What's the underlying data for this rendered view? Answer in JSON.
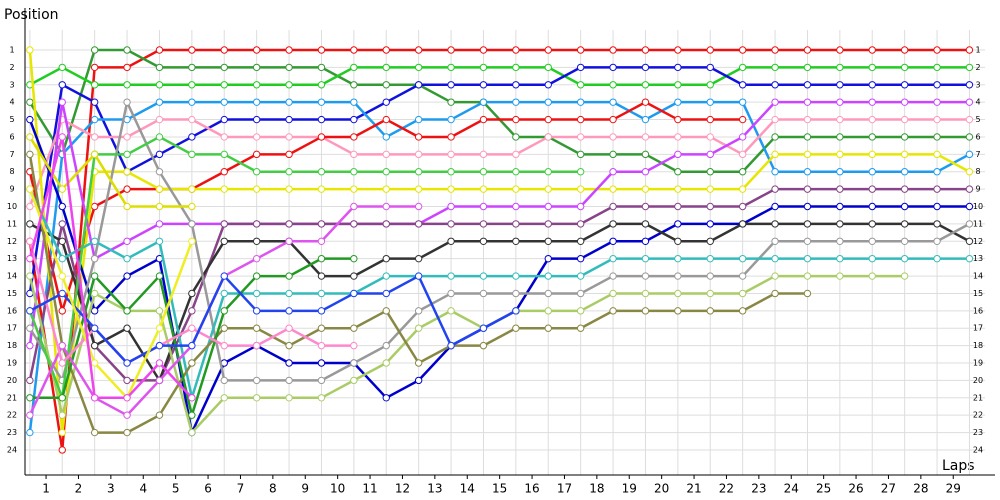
{
  "chart_data": {
    "type": "line",
    "y_label": "Position",
    "x_label": "Laps",
    "x": [
      0,
      1,
      2,
      3,
      4,
      5,
      6,
      7,
      8,
      9,
      10,
      11,
      12,
      13,
      14,
      15,
      16,
      17,
      18,
      19,
      20,
      21,
      22,
      23,
      24,
      25,
      26,
      27,
      28,
      29
    ],
    "xlim": [
      -0.15,
      29.48
    ],
    "xticks": [
      {
        "value": 0.5,
        "label": "1"
      },
      {
        "value": 1.5,
        "label": "2"
      },
      {
        "value": 2.5,
        "label": "3"
      },
      {
        "value": 3.5,
        "label": "4"
      },
      {
        "value": 4.5,
        "label": "5"
      },
      {
        "value": 5.5,
        "label": "6"
      },
      {
        "value": 6.5,
        "label": "7"
      },
      {
        "value": 7.5,
        "label": "8"
      },
      {
        "value": 8.5,
        "label": "9"
      },
      {
        "value": 9.5,
        "label": "10"
      },
      {
        "value": 10.5,
        "label": "11"
      },
      {
        "value": 11.5,
        "label": "12"
      },
      {
        "value": 12.5,
        "label": "13"
      },
      {
        "value": 13.5,
        "label": "14"
      },
      {
        "value": 14.5,
        "label": "15"
      },
      {
        "value": 15.5,
        "label": "16"
      },
      {
        "value": 16.5,
        "label": "17"
      },
      {
        "value": 17.5,
        "label": "18"
      },
      {
        "value": 18.5,
        "label": "19"
      },
      {
        "value": 19.5,
        "label": "20"
      },
      {
        "value": 20.5,
        "label": "21"
      },
      {
        "value": 21.5,
        "label": "22"
      },
      {
        "value": 22.5,
        "label": "23"
      },
      {
        "value": 23.5,
        "label": "24"
      },
      {
        "value": 24.5,
        "label": "25"
      },
      {
        "value": 25.5,
        "label": "26"
      },
      {
        "value": 26.5,
        "label": "27"
      },
      {
        "value": 27.5,
        "label": "28"
      },
      {
        "value": 28.5,
        "label": "29"
      }
    ],
    "ylim": [
      25.44,
      -0.15
    ],
    "yticks": [
      1,
      2,
      3,
      4,
      5,
      6,
      7,
      8,
      9,
      10,
      11,
      12,
      13,
      14,
      15,
      16,
      17,
      18,
      19,
      20,
      21,
      22,
      23,
      24
    ],
    "grid": true,
    "series": [
      {
        "color": "#ee1111",
        "values": [
          12,
          24,
          2,
          2,
          1,
          1,
          1,
          1,
          1,
          1,
          1,
          1,
          1,
          1,
          1,
          1,
          1,
          1,
          1,
          1,
          1,
          1,
          1,
          1,
          1,
          1,
          1,
          1,
          1,
          1
        ]
      },
      {
        "color": "#339933",
        "values": [
          4,
          7,
          1,
          1,
          2,
          2,
          2,
          2,
          2,
          2,
          3,
          3,
          3,
          4,
          4,
          6,
          6,
          7,
          7,
          7,
          8,
          8,
          8,
          6,
          6,
          6,
          6,
          6,
          6,
          6
        ]
      },
      {
        "color": "#22cc22",
        "values": [
          3,
          2,
          3,
          3,
          3,
          3,
          3,
          3,
          3,
          3,
          2,
          2,
          2,
          2,
          2,
          2,
          2,
          3,
          3,
          3,
          3,
          3,
          2,
          2,
          2,
          2,
          2,
          2,
          2,
          2
        ]
      },
      {
        "color": "#1111dd",
        "values": [
          15,
          3,
          4,
          8,
          7,
          6,
          5,
          5,
          5,
          5,
          5,
          4,
          3,
          3,
          3,
          3,
          3,
          2,
          2,
          2,
          2,
          2,
          3,
          3,
          3,
          3,
          3,
          3,
          3,
          3
        ]
      },
      {
        "color": "#1e9bef",
        "values": [
          23,
          7,
          5,
          5,
          4,
          4,
          4,
          4,
          4,
          4,
          4,
          6,
          5,
          5,
          4,
          4,
          4,
          4,
          4,
          5,
          4,
          4,
          4,
          8,
          8,
          8,
          8,
          8,
          8,
          7
        ]
      },
      {
        "color": "#ff99bb",
        "values": [
          10,
          5,
          6,
          6,
          5,
          5,
          6,
          6,
          6,
          6,
          7,
          7,
          7,
          7,
          7,
          7,
          6,
          6,
          6,
          6,
          6,
          6,
          7,
          5,
          5,
          5,
          5,
          5,
          5,
          5
        ]
      },
      {
        "color": "#ee1111",
        "values": [
          8,
          16,
          10,
          9,
          9,
          9,
          8,
          7,
          7,
          6,
          6,
          5,
          6,
          6,
          5,
          5,
          5,
          5,
          5,
          4,
          5,
          5,
          5,
          null,
          null,
          null,
          null,
          null,
          null,
          null
        ]
      },
      {
        "color": "#e6e600",
        "values": [
          1,
          23,
          8,
          8,
          9,
          9,
          9,
          9,
          9,
          9,
          9,
          9,
          9,
          9,
          9,
          9,
          9,
          9,
          9,
          9,
          9,
          9,
          9,
          7,
          7,
          7,
          7,
          7,
          7,
          8
        ]
      },
      {
        "color": "#cc44ff",
        "values": [
          18,
          4,
          13,
          12,
          11,
          11,
          11,
          11,
          11,
          11,
          11,
          11,
          11,
          10,
          10,
          10,
          10,
          10,
          8,
          8,
          7,
          7,
          6,
          4,
          4,
          4,
          4,
          4,
          4,
          4
        ]
      },
      {
        "color": "#884488",
        "values": [
          20,
          11,
          18,
          20,
          20,
          16,
          11,
          11,
          11,
          11,
          11,
          11,
          11,
          11,
          11,
          11,
          11,
          11,
          10,
          10,
          10,
          10,
          10,
          9,
          9,
          9,
          9,
          9,
          9,
          9
        ]
      },
      {
        "color": "#0000cc",
        "values": [
          5,
          10,
          16,
          14,
          13,
          23,
          19,
          18,
          19,
          19,
          19,
          21,
          20,
          18,
          17,
          16,
          13,
          13,
          12,
          12,
          11,
          11,
          11,
          10,
          10,
          10,
          10,
          10,
          10,
          10
        ]
      },
      {
        "color": "#333333",
        "values": [
          11,
          12,
          18,
          17,
          20,
          15,
          12,
          12,
          12,
          14,
          14,
          13,
          13,
          12,
          12,
          12,
          12,
          12,
          11,
          11,
          12,
          12,
          11,
          11,
          11,
          11,
          11,
          11,
          11,
          12
        ]
      },
      {
        "color": "#999999",
        "values": [
          17,
          20,
          13,
          4,
          8,
          11,
          20,
          20,
          20,
          20,
          19,
          18,
          16,
          15,
          15,
          15,
          15,
          15,
          14,
          14,
          14,
          14,
          14,
          12,
          12,
          12,
          12,
          12,
          12,
          11
        ]
      },
      {
        "color": "#33bbbb",
        "values": [
          9,
          13,
          12,
          13,
          12,
          21,
          15,
          15,
          15,
          15,
          15,
          14,
          14,
          14,
          14,
          14,
          14,
          14,
          13,
          13,
          13,
          13,
          13,
          13,
          13,
          13,
          13,
          13,
          13,
          13
        ]
      },
      {
        "color": "#aacc66",
        "values": [
          14,
          22,
          15,
          16,
          16,
          23,
          21,
          21,
          21,
          21,
          20,
          19,
          17,
          16,
          17,
          16,
          16,
          16,
          15,
          15,
          15,
          15,
          15,
          14,
          14,
          14,
          14,
          14,
          null,
          null
        ]
      },
      {
        "color": "#888844",
        "values": [
          7,
          18,
          23,
          23,
          22,
          19,
          17,
          17,
          18,
          17,
          17,
          16,
          19,
          18,
          18,
          17,
          17,
          17,
          16,
          16,
          16,
          16,
          16,
          15,
          15,
          null,
          null,
          null,
          null,
          null
        ]
      },
      {
        "color": "#44cc44",
        "values": [
          16,
          21,
          7,
          7,
          6,
          7,
          7,
          8,
          8,
          8,
          8,
          8,
          8,
          8,
          8,
          8,
          8,
          8,
          null,
          null,
          null,
          null,
          null,
          null,
          null,
          null,
          null,
          null,
          null,
          null
        ]
      },
      {
        "color": "#229922",
        "values": [
          21,
          21,
          14,
          16,
          14,
          22,
          16,
          14,
          14,
          13,
          13,
          null,
          null,
          null,
          null,
          null,
          null,
          null,
          null,
          null,
          null,
          null,
          null,
          null,
          null,
          null,
          null,
          null,
          null,
          null
        ]
      },
      {
        "color": "#dddd00",
        "values": [
          6,
          9,
          7,
          10,
          10,
          10,
          null,
          null,
          null,
          null,
          null,
          null,
          null,
          null,
          null,
          null,
          null,
          null,
          null,
          null,
          null,
          null,
          null,
          null,
          null,
          null,
          null,
          null,
          null,
          null
        ]
      },
      {
        "color": "#dd55ee",
        "values": [
          22,
          18,
          21,
          22,
          20,
          18,
          14,
          13,
          12,
          12,
          10,
          10,
          10,
          null,
          null,
          null,
          null,
          null,
          null,
          null,
          null,
          null,
          null,
          null,
          null,
          null,
          null,
          null,
          null,
          null
        ]
      },
      {
        "color": "#ff88cc",
        "values": [
          12,
          19,
          17,
          19,
          18,
          17,
          18,
          18,
          17,
          18,
          18,
          null,
          null,
          null,
          null,
          null,
          null,
          null,
          null,
          null,
          null,
          null,
          null,
          null,
          null,
          null,
          null,
          null,
          null,
          null
        ]
      },
      {
        "color": "#2244ee",
        "values": [
          16,
          15,
          17,
          19,
          18,
          18,
          14,
          16,
          16,
          16,
          15,
          15,
          14,
          18,
          17,
          16,
          null,
          null,
          null,
          null,
          null,
          null,
          null,
          null,
          null,
          null,
          null,
          null,
          null,
          null
        ]
      },
      {
        "color": "#eeee22",
        "values": [
          9,
          14,
          19,
          21,
          17,
          12,
          null,
          null,
          null,
          null,
          null,
          null,
          null,
          null,
          null,
          null,
          null,
          null,
          null,
          null,
          null,
          null,
          null,
          null,
          null,
          null,
          null,
          null,
          null,
          null
        ]
      },
      {
        "color": "#ee44ee",
        "values": [
          13,
          6,
          21,
          21,
          19,
          21,
          null,
          null,
          null,
          null,
          null,
          null,
          null,
          null,
          null,
          null,
          null,
          null,
          null,
          null,
          null,
          null,
          null,
          null,
          null,
          null,
          null,
          null,
          null,
          null
        ]
      }
    ]
  }
}
